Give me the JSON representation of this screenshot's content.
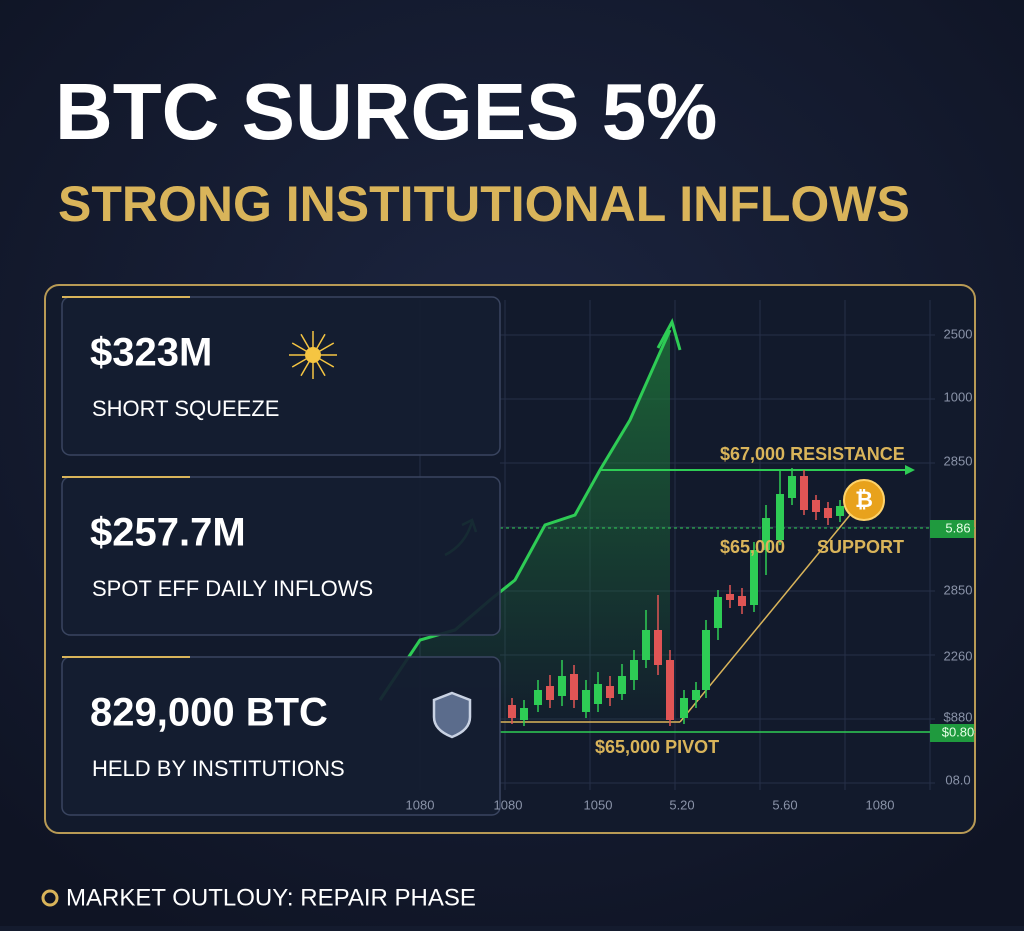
{
  "header": {
    "title": "BTC SURGES 5%",
    "subtitle": "STRONG INSTITUTIONAL INFLOWS"
  },
  "cards": [
    {
      "value": "$323M",
      "label": "SHORT SQUEEZE"
    },
    {
      "value": "$257.7M",
      "label": "SPOT EFF DAILY INFLOWS"
    },
    {
      "value": "829,000 BTC",
      "label": "HELD BY INSTITUTIONS"
    }
  ],
  "chart": {
    "annotations": {
      "resistance": "$67,000 RESISTANCE",
      "support_price": "$65,000",
      "support": "SUPPORT",
      "pivot": "$65,000 PIVOT"
    },
    "y_axis_labels": [
      "2500",
      "1000",
      "2850",
      "5.86",
      "2850",
      "2260",
      "$880",
      "$0.80",
      "08.0"
    ],
    "x_axis_labels": [
      "1080",
      "1080",
      "1050",
      "5.20",
      "5.60",
      "1080"
    ]
  },
  "footer": "MARKET OUTLOUY: REPAIR PHASE"
}
